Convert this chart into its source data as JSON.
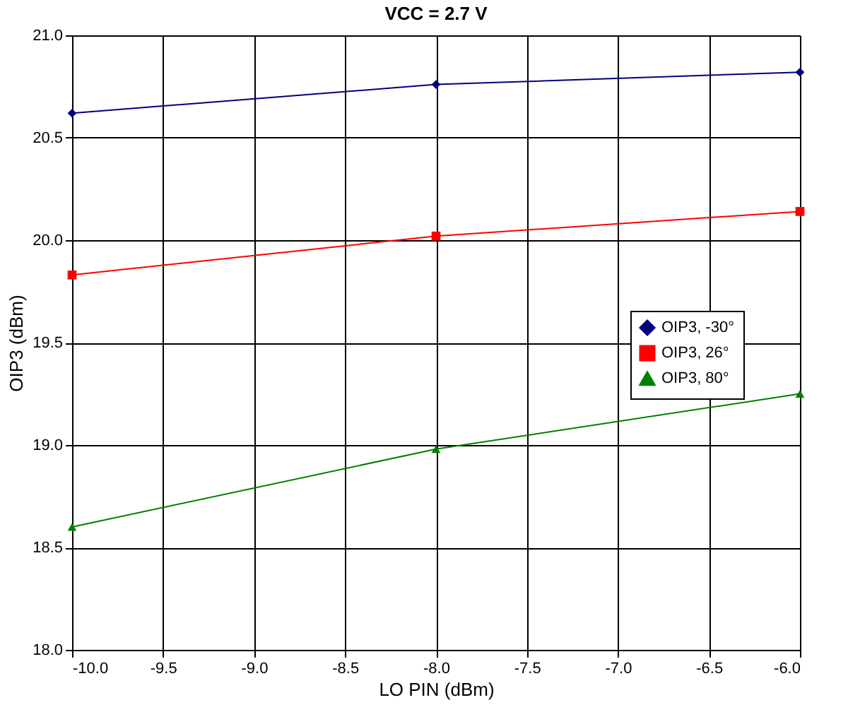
{
  "chart_data": {
    "type": "line",
    "title": "VCC = 2.7 V",
    "xlabel": "LO PIN (dBm)",
    "ylabel": "OIP3 (dBm)",
    "x": [
      -10,
      -8,
      -6
    ],
    "series": [
      {
        "name": "OIP3, -30°",
        "color": "#000080",
        "marker": "diamond",
        "values": [
          20.62,
          20.76,
          20.82
        ]
      },
      {
        "name": "OIP3, 26°",
        "color": "#ff0000",
        "marker": "square",
        "values": [
          19.83,
          20.02,
          20.14
        ]
      },
      {
        "name": "OIP3, 80°",
        "color": "#008000",
        "marker": "triangle",
        "values": [
          18.6,
          18.98,
          19.25
        ]
      }
    ],
    "xlim": [
      -10,
      -6
    ],
    "xticks": [
      {
        "value": -10,
        "label": "-10.0"
      },
      {
        "value": -9.5,
        "label": "-9.5"
      },
      {
        "value": -9,
        "label": "-9.0"
      },
      {
        "value": -8.5,
        "label": "-8.5"
      },
      {
        "value": -8,
        "label": "-8.0"
      },
      {
        "value": -7.5,
        "label": "-7.5"
      },
      {
        "value": -7,
        "label": "-7.0"
      },
      {
        "value": -6.5,
        "label": "-6.5"
      },
      {
        "value": -6,
        "label": "-6.0"
      }
    ],
    "ylim": [
      18,
      21
    ],
    "yticks": [
      {
        "value": 18,
        "label": "18.0"
      },
      {
        "value": 18.5,
        "label": "18.5"
      },
      {
        "value": 19,
        "label": "19.0"
      },
      {
        "value": 19.5,
        "label": "19.5"
      },
      {
        "value": 20,
        "label": "20.0"
      },
      {
        "value": 20.5,
        "label": "20.5"
      },
      {
        "value": 21,
        "label": "21.0"
      }
    ],
    "grid": true,
    "legend": "right",
    "line_style": "solid"
  }
}
